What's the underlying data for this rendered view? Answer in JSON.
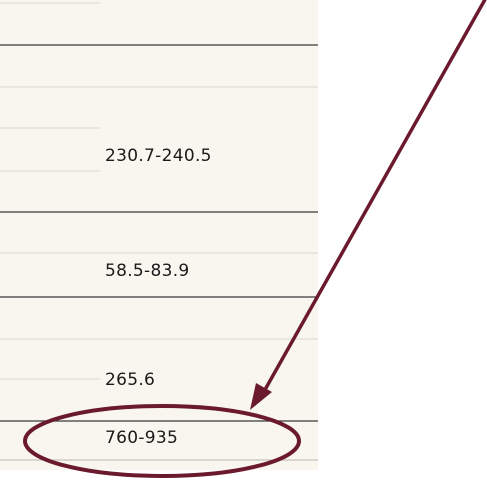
{
  "table": {
    "cells": [
      "230.7-240.5",
      "58.5-83.9",
      "265.6",
      "760-935"
    ]
  }
}
